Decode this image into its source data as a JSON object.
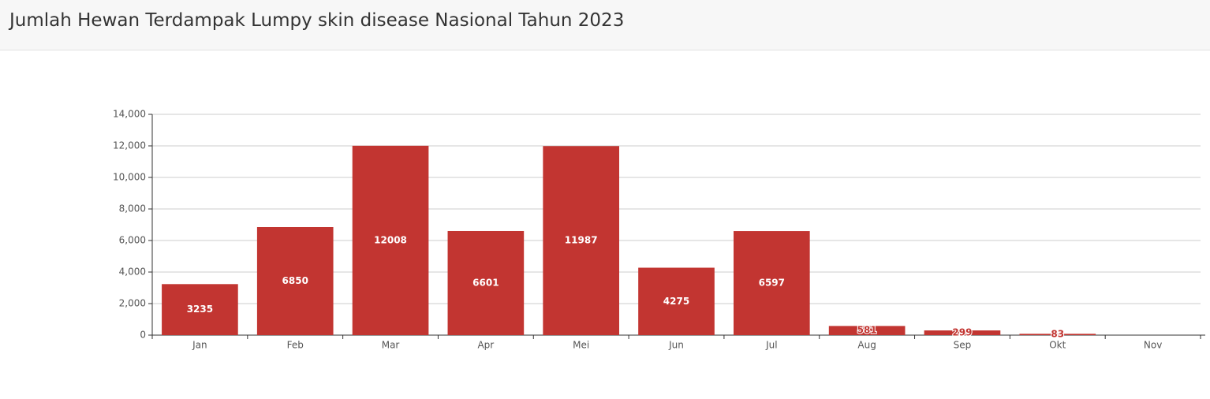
{
  "chart_data": {
    "type": "bar",
    "title": "Jumlah Hewan Terdampak Lumpy skin disease Nasional Tahun 2023",
    "categories": [
      "Jan",
      "Feb",
      "Mar",
      "Apr",
      "Mei",
      "Jun",
      "Jul",
      "Aug",
      "Sep",
      "Okt",
      "Nov"
    ],
    "values": [
      3235,
      6850,
      12008,
      6601,
      11987,
      4275,
      6597,
      581,
      299,
      83,
      null
    ],
    "color": "#c23531",
    "ylim": [
      0,
      14000
    ],
    "yticks": [
      0,
      {
        "value": 2000,
        "label": "2,000"
      },
      {
        "value": 4000,
        "label": "4,000"
      },
      {
        "value": 6000,
        "label": "6,000"
      },
      {
        "value": 8000,
        "label": "8,000"
      },
      {
        "value": 10000,
        "label": "10,000"
      },
      {
        "value": 12000,
        "label": "12,000"
      },
      {
        "value": 14000,
        "label": "14,000"
      }
    ],
    "grid": true
  }
}
